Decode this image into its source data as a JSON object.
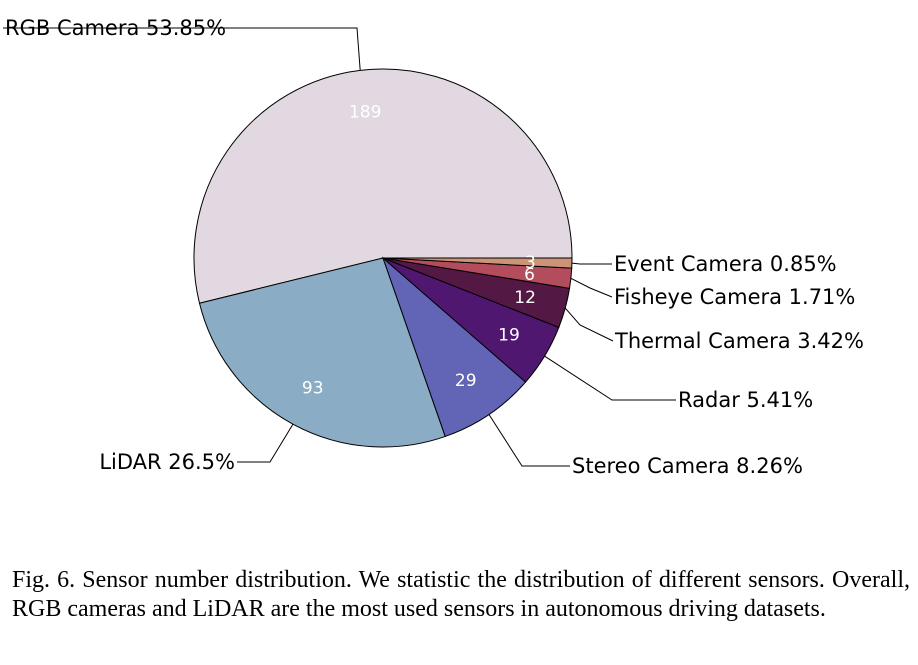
{
  "chart_data": {
    "type": "pie",
    "slices": [
      {
        "name": "RGB Camera",
        "value": 189,
        "percent_label": "53.85%",
        "color": "#e2d8e1"
      },
      {
        "name": "LiDAR",
        "value": 93,
        "percent_label": "26.5%",
        "color": "#8aadc5"
      },
      {
        "name": "Stereo Camera",
        "value": 29,
        "percent_label": "8.26%",
        "color": "#6264b6"
      },
      {
        "name": "Radar",
        "value": 19,
        "percent_label": "5.41%",
        "color": "#4f1770"
      },
      {
        "name": "Thermal Camera",
        "value": 12,
        "percent_label": "3.42%",
        "color": "#531843"
      },
      {
        "name": "Fisheye Camera",
        "value": 6,
        "percent_label": "1.71%",
        "color": "#b34c5c"
      },
      {
        "name": "Event Camera",
        "value": 3,
        "percent_label": "0.85%",
        "color": "#cc9377"
      }
    ],
    "start_angle_deg": 0,
    "direction": "counterclockwise"
  },
  "caption": {
    "text": "Fig. 6.  Sensor number distribution. We statistic the distribution of different sensors. Overall, RGB cameras and LiDAR are the most used sensors in autonomous driving datasets."
  }
}
